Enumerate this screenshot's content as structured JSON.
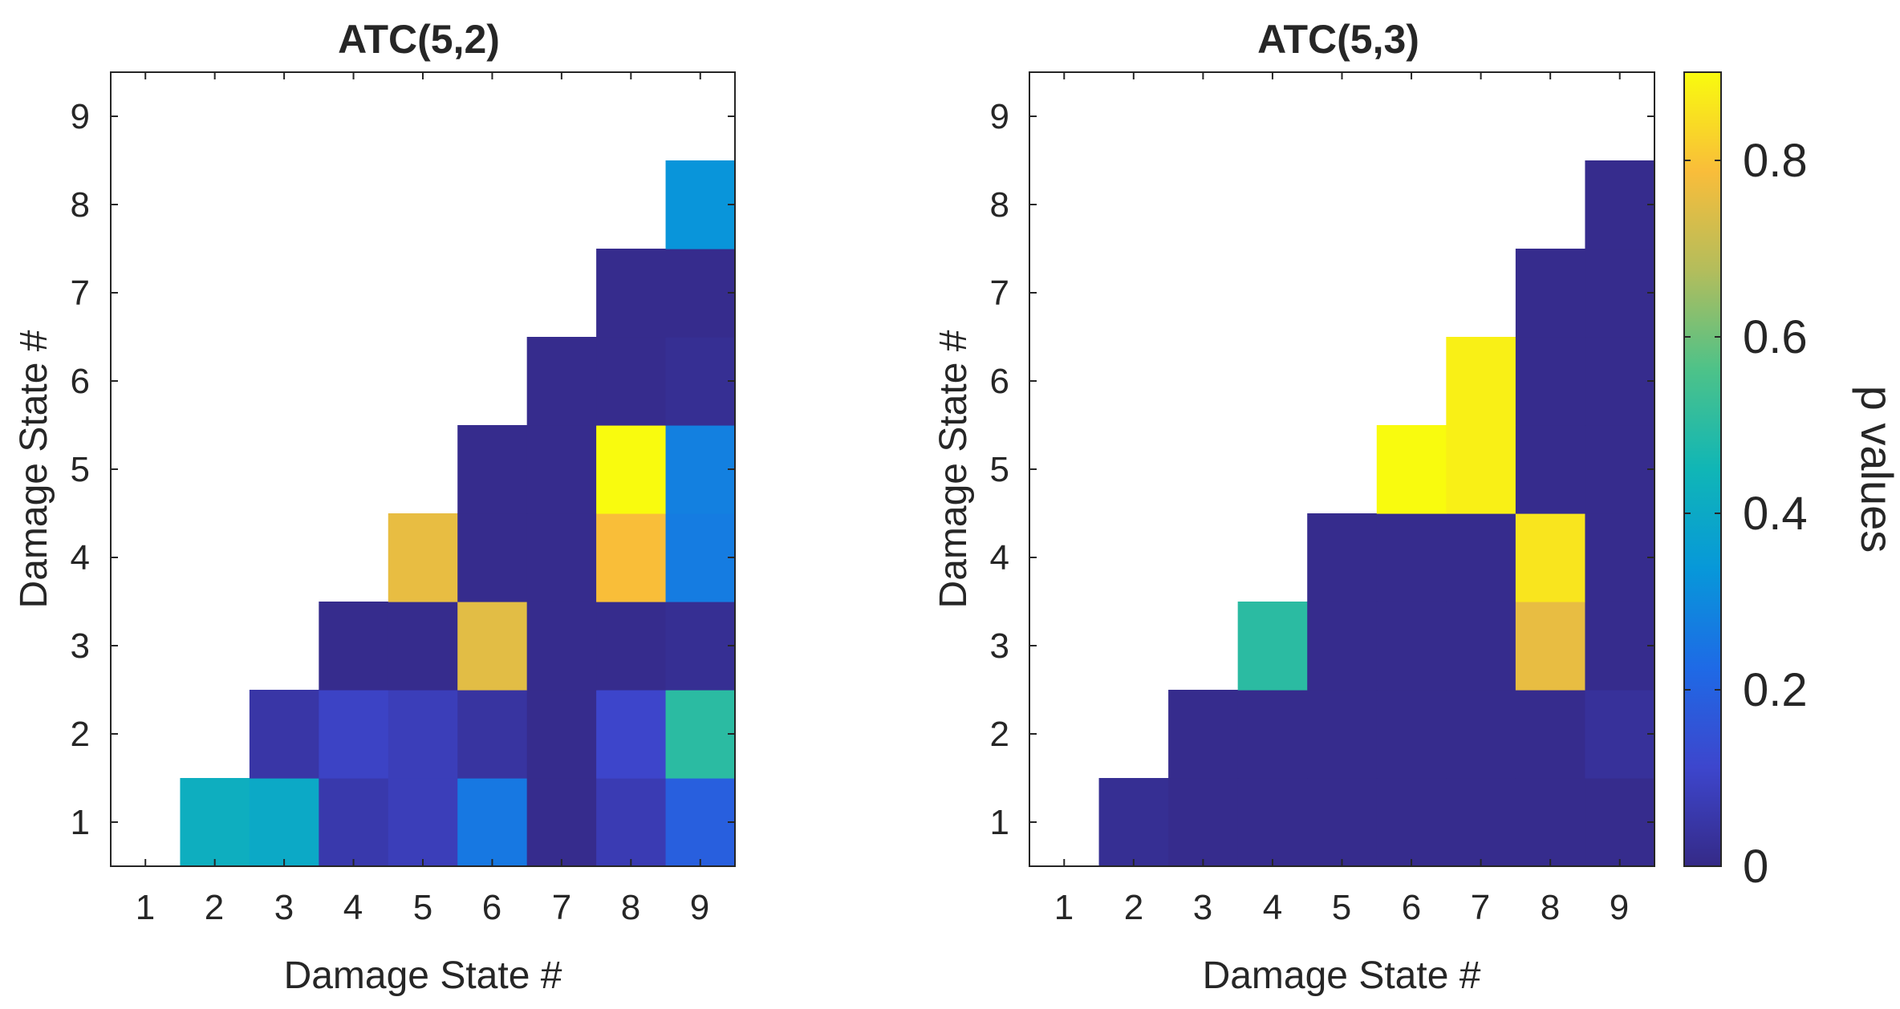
{
  "chart_data": {
    "type": "heatmap",
    "colorbar": {
      "label": "p values",
      "range": [
        0,
        0.9
      ],
      "ticks": [
        0,
        0.2,
        0.4,
        0.6,
        0.8
      ],
      "tick_labels": [
        "0",
        "0.2",
        "0.4",
        "0.6",
        "0.8"
      ],
      "colormap": "parula"
    },
    "panels": [
      {
        "title": "ATC(5,2)",
        "xlabel": "Damage State #",
        "ylabel": "Damage State #",
        "xticks": [
          "1",
          "2",
          "3",
          "4",
          "5",
          "6",
          "7",
          "8",
          "9"
        ],
        "yticks": [
          "1",
          "2",
          "3",
          "4",
          "5",
          "6",
          "7",
          "8",
          "9"
        ],
        "cells": [
          {
            "x": 2,
            "y": 1,
            "v": 0.42
          },
          {
            "x": 3,
            "y": 1,
            "v": 0.4
          },
          {
            "x": 4,
            "y": 1,
            "v": 0.06
          },
          {
            "x": 5,
            "y": 1,
            "v": 0.08
          },
          {
            "x": 6,
            "y": 1,
            "v": 0.26
          },
          {
            "x": 7,
            "y": 1,
            "v": 0.01
          },
          {
            "x": 8,
            "y": 1,
            "v": 0.07
          },
          {
            "x": 9,
            "y": 1,
            "v": 0.19
          },
          {
            "x": 3,
            "y": 2,
            "v": 0.05
          },
          {
            "x": 4,
            "y": 2,
            "v": 0.1
          },
          {
            "x": 5,
            "y": 2,
            "v": 0.08
          },
          {
            "x": 6,
            "y": 2,
            "v": 0.04
          },
          {
            "x": 7,
            "y": 2,
            "v": 0.01
          },
          {
            "x": 8,
            "y": 2,
            "v": 0.11
          },
          {
            "x": 9,
            "y": 2,
            "v": 0.5
          },
          {
            "x": 4,
            "y": 3,
            "v": 0.01
          },
          {
            "x": 5,
            "y": 3,
            "v": 0.01
          },
          {
            "x": 6,
            "y": 3,
            "v": 0.75
          },
          {
            "x": 7,
            "y": 3,
            "v": 0.01
          },
          {
            "x": 8,
            "y": 3,
            "v": 0.01
          },
          {
            "x": 9,
            "y": 3,
            "v": 0.02
          },
          {
            "x": 5,
            "y": 4,
            "v": 0.76
          },
          {
            "x": 6,
            "y": 4,
            "v": 0.01
          },
          {
            "x": 7,
            "y": 4,
            "v": 0.01
          },
          {
            "x": 8,
            "y": 4,
            "v": 0.79
          },
          {
            "x": 9,
            "y": 4,
            "v": 0.27
          },
          {
            "x": 6,
            "y": 5,
            "v": 0.01
          },
          {
            "x": 7,
            "y": 5,
            "v": 0.01
          },
          {
            "x": 8,
            "y": 5,
            "v": 0.9
          },
          {
            "x": 9,
            "y": 5,
            "v": 0.28
          },
          {
            "x": 7,
            "y": 6,
            "v": 0.01
          },
          {
            "x": 8,
            "y": 6,
            "v": 0.01
          },
          {
            "x": 9,
            "y": 6,
            "v": 0.02
          },
          {
            "x": 8,
            "y": 7,
            "v": 0.01
          },
          {
            "x": 9,
            "y": 7,
            "v": 0.01
          },
          {
            "x": 9,
            "y": 8,
            "v": 0.33
          }
        ]
      },
      {
        "title": "ATC(5,3)",
        "xlabel": "Damage State #",
        "ylabel": "Damage State #",
        "xticks": [
          "1",
          "2",
          "3",
          "4",
          "5",
          "6",
          "7",
          "8",
          "9"
        ],
        "yticks": [
          "1",
          "2",
          "3",
          "4",
          "5",
          "6",
          "7",
          "8",
          "9"
        ],
        "cells": [
          {
            "x": 2,
            "y": 1,
            "v": 0.02
          },
          {
            "x": 3,
            "y": 1,
            "v": 0.01
          },
          {
            "x": 4,
            "y": 1,
            "v": 0.01
          },
          {
            "x": 5,
            "y": 1,
            "v": 0.01
          },
          {
            "x": 6,
            "y": 1,
            "v": 0.01
          },
          {
            "x": 7,
            "y": 1,
            "v": 0.01
          },
          {
            "x": 8,
            "y": 1,
            "v": 0.01
          },
          {
            "x": 9,
            "y": 1,
            "v": 0.01
          },
          {
            "x": 3,
            "y": 2,
            "v": 0.01
          },
          {
            "x": 4,
            "y": 2,
            "v": 0.01
          },
          {
            "x": 5,
            "y": 2,
            "v": 0.01
          },
          {
            "x": 6,
            "y": 2,
            "v": 0.01
          },
          {
            "x": 7,
            "y": 2,
            "v": 0.01
          },
          {
            "x": 8,
            "y": 2,
            "v": 0.01
          },
          {
            "x": 9,
            "y": 2,
            "v": 0.03
          },
          {
            "x": 4,
            "y": 3,
            "v": 0.5
          },
          {
            "x": 5,
            "y": 3,
            "v": 0.01
          },
          {
            "x": 6,
            "y": 3,
            "v": 0.01
          },
          {
            "x": 7,
            "y": 3,
            "v": 0.01
          },
          {
            "x": 8,
            "y": 3,
            "v": 0.76
          },
          {
            "x": 9,
            "y": 3,
            "v": 0.01
          },
          {
            "x": 5,
            "y": 4,
            "v": 0.01
          },
          {
            "x": 6,
            "y": 4,
            "v": 0.01
          },
          {
            "x": 7,
            "y": 4,
            "v": 0.01
          },
          {
            "x": 8,
            "y": 4,
            "v": 0.86
          },
          {
            "x": 9,
            "y": 4,
            "v": 0.01
          },
          {
            "x": 6,
            "y": 5,
            "v": 0.9
          },
          {
            "x": 7,
            "y": 5,
            "v": 0.88
          },
          {
            "x": 8,
            "y": 5,
            "v": 0.01
          },
          {
            "x": 9,
            "y": 5,
            "v": 0.01
          },
          {
            "x": 7,
            "y": 6,
            "v": 0.88
          },
          {
            "x": 8,
            "y": 6,
            "v": 0.01
          },
          {
            "x": 9,
            "y": 6,
            "v": 0.01
          },
          {
            "x": 8,
            "y": 7,
            "v": 0.01
          },
          {
            "x": 9,
            "y": 7,
            "v": 0.01
          },
          {
            "x": 9,
            "y": 8,
            "v": 0.01
          }
        ]
      }
    ]
  }
}
